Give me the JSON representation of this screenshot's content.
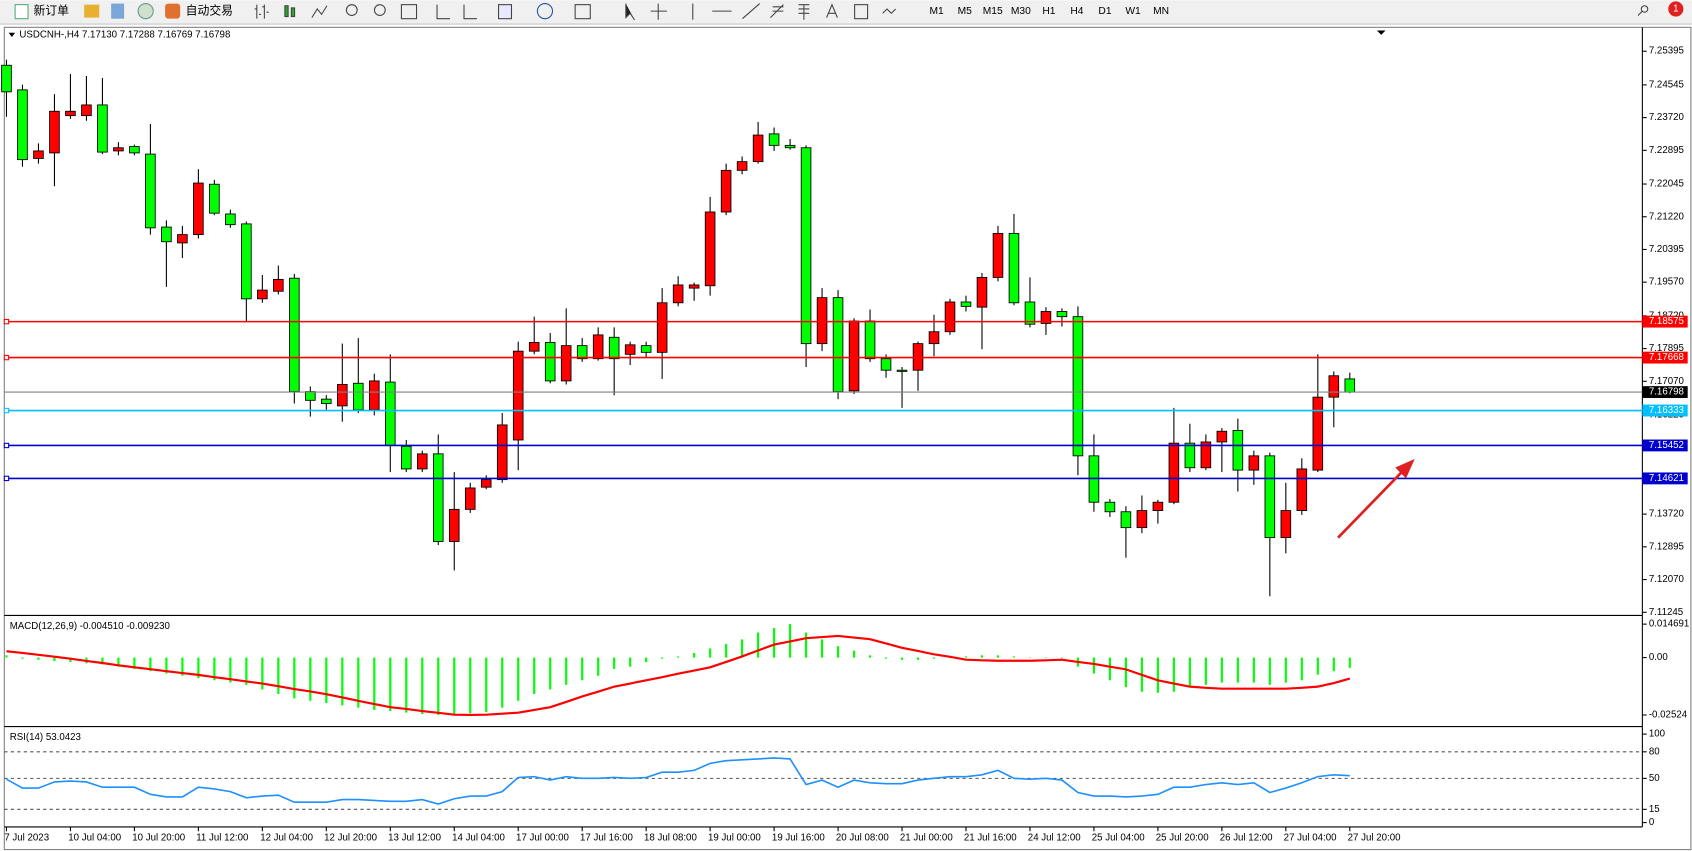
{
  "toolbar": {
    "new_order": "新订单",
    "auto_trading": "自动交易",
    "periods": [
      "M1",
      "M5",
      "M15",
      "M30",
      "H1",
      "H4",
      "D1",
      "W1",
      "MN"
    ],
    "badge": "1"
  },
  "chart_data": [
    {
      "type": "candlestick",
      "title": "USDCNH-,H4 7.17130 7.17288 7.16769 7.16798",
      "categories": [
        "7 Jul 2023",
        null,
        null,
        null,
        "10 Jul 04:00",
        null,
        null,
        null,
        "10 Jul 20:00",
        null,
        null,
        null,
        "11 Jul 12:00",
        null,
        null,
        null,
        "12 Jul 04:00",
        null,
        null,
        null,
        "12 Jul 20:00",
        null,
        null,
        null,
        "13 Jul 12:00",
        null,
        null,
        null,
        "14 Jul 04:00",
        null,
        null,
        null,
        "17 Jul 00:00",
        null,
        null,
        null,
        "17 Jul 16:00",
        null,
        null,
        null,
        "18 Jul 08:00",
        null,
        null,
        null,
        "19 Jul 00:00",
        null,
        null,
        null,
        "19 Jul 16:00",
        null,
        null,
        null,
        "20 Jul 08:00",
        null,
        null,
        null,
        "21 Jul 00:00",
        null,
        null,
        null,
        "21 Jul 16:00",
        null,
        null,
        null,
        "24 Jul 12:00",
        null,
        null,
        null,
        "25 Jul 04:00",
        null,
        null,
        null,
        "25 Jul 20:00",
        null,
        null,
        null,
        "26 Jul 12:00",
        null,
        null,
        null,
        "27 Jul 04:00",
        null,
        null,
        null,
        "27 Jul 20:00"
      ],
      "open": [
        7.2504,
        7.2442,
        7.2269,
        7.2283,
        7.2377,
        7.2377,
        7.2404,
        7.2288,
        7.2299,
        7.228,
        7.2096,
        7.2056,
        7.2077,
        7.2204,
        7.2129,
        7.2104,
        7.1915,
        7.1934,
        7.1967,
        7.1681,
        7.1662,
        7.1645,
        7.1702,
        7.1635,
        7.1705,
        7.1543,
        7.1486,
        7.1524,
        7.1303,
        7.1384,
        7.144,
        7.1459,
        7.1559,
        7.1783,
        7.1805,
        7.1708,
        7.1797,
        7.1764,
        7.1818,
        7.1775,
        7.1797,
        7.178,
        7.1905,
        7.1942,
        7.1948,
        7.2134,
        7.2239,
        7.2261,
        7.2331,
        7.2302,
        7.2296,
        7.1802,
        7.1918,
        7.1683,
        7.1859,
        7.1764,
        7.1735,
        7.1735,
        7.1802,
        7.1832,
        7.1907,
        7.1894,
        7.1969,
        7.208,
        7.1907,
        7.1853,
        7.1883,
        7.187,
        7.1519,
        7.1402,
        7.1378,
        7.1338,
        7.1381,
        7.1402,
        7.1551,
        7.1489,
        7.1554,
        7.1583,
        7.1483,
        7.1519,
        7.1313,
        7.1381,
        7.1483,
        7.1667,
        7.1713
      ],
      "high": [
        7.2518,
        7.2455,
        7.2307,
        7.2431,
        7.2482,
        7.2477,
        7.2472,
        7.231,
        7.2304,
        7.2356,
        7.2113,
        7.2099,
        7.2242,
        7.2215,
        7.214,
        7.211,
        7.1975,
        7.1999,
        7.1978,
        7.1694,
        7.1672,
        7.1802,
        7.1816,
        7.1726,
        7.1775,
        7.1559,
        7.1532,
        7.1573,
        7.1478,
        7.1451,
        7.147,
        7.1627,
        7.1807,
        7.187,
        7.1829,
        7.1891,
        7.1816,
        7.1843,
        7.1843,
        7.1807,
        7.1807,
        7.1942,
        7.1972,
        7.1956,
        7.2172,
        7.2256,
        7.2274,
        7.2361,
        7.2347,
        7.2318,
        7.2302,
        7.1942,
        7.1937,
        7.1866,
        7.1888,
        7.1775,
        7.1743,
        7.1807,
        7.1875,
        7.1915,
        7.1923,
        7.198,
        7.2099,
        7.2129,
        7.1969,
        7.1894,
        7.1891,
        7.1896,
        7.1573,
        7.141,
        7.1392,
        7.1419,
        7.1408,
        7.164,
        7.16,
        7.1573,
        7.1589,
        7.1613,
        7.1532,
        7.1527,
        7.1451,
        7.1513,
        7.1775,
        7.1732,
        7.17288
      ],
      "low": [
        7.2374,
        7.2248,
        7.2256,
        7.2199,
        7.2369,
        7.2364,
        7.228,
        7.2277,
        7.2277,
        7.2077,
        7.1945,
        7.2018,
        7.2067,
        7.2126,
        7.2094,
        7.1856,
        7.1905,
        7.1926,
        7.1651,
        7.1618,
        7.1635,
        7.1605,
        7.1627,
        7.1621,
        7.1478,
        7.1478,
        7.1478,
        7.1294,
        7.123,
        7.1375,
        7.1435,
        7.1451,
        7.1483,
        7.1775,
        7.1702,
        7.1699,
        7.1756,
        7.1759,
        7.1672,
        7.1748,
        7.1767,
        7.1713,
        7.1896,
        7.191,
        7.1923,
        7.2126,
        7.2229,
        7.2256,
        7.2288,
        7.2291,
        7.1743,
        7.1783,
        7.1662,
        7.1675,
        7.1756,
        7.1716,
        7.164,
        7.1683,
        7.177,
        7.1824,
        7.1883,
        7.1788,
        7.1959,
        7.1899,
        7.1843,
        7.1824,
        7.1845,
        7.147,
        7.1378,
        7.1365,
        7.1262,
        7.1324,
        7.1348,
        7.1397,
        7.1478,
        7.1483,
        7.1478,
        7.1429,
        7.1446,
        7.1165,
        7.1273,
        7.137,
        7.1478,
        7.1591,
        7.16769
      ],
      "close": [
        7.2437,
        7.2266,
        7.2288,
        7.2388,
        7.2388,
        7.2404,
        7.2285,
        7.2296,
        7.2283,
        7.2094,
        7.2059,
        7.2077,
        7.2207,
        7.2131,
        7.2102,
        7.1915,
        7.1937,
        7.1964,
        7.1681,
        7.1659,
        7.1651,
        7.1699,
        7.1635,
        7.1708,
        7.1545,
        7.1486,
        7.1524,
        7.1303,
        7.1384,
        7.1438,
        7.1459,
        7.1597,
        7.1783,
        7.1805,
        7.1708,
        7.1797,
        7.1764,
        7.1824,
        7.1764,
        7.1799,
        7.178,
        7.1905,
        7.195,
        7.195,
        7.2134,
        7.2239,
        7.2261,
        7.2328,
        7.2302,
        7.2296,
        7.1802,
        7.1918,
        7.1681,
        7.1859,
        7.1764,
        7.1735,
        7.1732,
        7.1802,
        7.1832,
        7.1907,
        7.1896,
        7.1969,
        7.208,
        7.1905,
        7.1851,
        7.1883,
        7.187,
        7.1519,
        7.1402,
        7.1378,
        7.1338,
        7.1381,
        7.1402,
        7.1551,
        7.1489,
        7.1554,
        7.1581,
        7.1483,
        7.1519,
        7.1313,
        7.1381,
        7.1486,
        7.1667,
        7.1721,
        7.16798
      ],
      "up_color": "#ff0000",
      "down_color": "#00ff00",
      "ylim": [
        7.1122,
        7.2597
      ],
      "yticks": [
        7.25395,
        7.24545,
        {
          "value": 7.2372,
          "label": "7.23720"
        },
        7.22895,
        7.22045,
        {
          "value": 7.2122,
          "label": "7.21220"
        },
        7.20395,
        {
          "value": 7.1957,
          "label": "7.19570"
        },
        {
          "value": 7.1872,
          "label": "7.18720"
        },
        7.17895,
        {
          "value": 7.1707,
          "label": "7.17070"
        },
        {
          "value": 7.1622,
          "label": "7.16220"
        },
        7.15395,
        {
          "value": 7.1457,
          "label": "7.14570"
        },
        {
          "value": 7.1372,
          "label": "7.13720"
        },
        7.12895,
        {
          "value": 7.1207,
          "label": "7.12070"
        },
        7.11245
      ],
      "price_lines": [
        {
          "value": 7.18575,
          "color": "#ff0000"
        },
        {
          "value": 7.17668,
          "color": "#ff0000"
        },
        {
          "value": 7.16333,
          "color": "#00bfff"
        },
        {
          "value": 7.15452,
          "color": "#0000cd"
        },
        {
          "value": 7.14621,
          "color": "#0000cd"
        }
      ],
      "last_price_color": "#000000"
    },
    {
      "type": "macd",
      "title": "MACD(12,26,9) -0.004510 -0.009230",
      "histogram": {
        "color": "#00ff00",
        "values": [
          0.001,
          -0.0005,
          -0.001,
          -0.0015,
          -0.002,
          -0.0025,
          -0.003,
          -0.004,
          -0.005,
          -0.006,
          -0.007,
          -0.008,
          -0.009,
          -0.01,
          -0.011,
          -0.012,
          -0.014,
          -0.016,
          -0.018,
          -0.019,
          -0.02,
          -0.021,
          -0.022,
          -0.023,
          -0.0235,
          -0.0242,
          -0.0248,
          -0.02524,
          -0.025,
          -0.0245,
          -0.024,
          -0.022,
          -0.019,
          -0.016,
          -0.014,
          -0.012,
          -0.01,
          -0.008,
          -0.005,
          -0.004,
          -0.002,
          -0.0005,
          0.0005,
          0.002,
          0.004,
          0.006,
          0.008,
          0.011,
          0.013,
          0.014691,
          0.011,
          0.008,
          0.005,
          0.003,
          0.001,
          -0.0005,
          -0.001,
          -0.001,
          -0.0005,
          0,
          0.0005,
          0.001,
          0.001,
          0.0005,
          0,
          0,
          0,
          -0.004,
          -0.007,
          -0.01,
          -0.013,
          -0.015,
          -0.0155,
          -0.015,
          -0.013,
          -0.012,
          -0.011,
          -0.011,
          -0.011,
          -0.012,
          -0.011,
          -0.01,
          -0.0075,
          -0.006,
          -0.00451
        ]
      },
      "signal": {
        "color": "#ff0000",
        "values": [
          0.0028,
          0.002,
          0.0012,
          0.0004,
          -0.0005,
          -0.0015,
          -0.0024,
          -0.0034,
          -0.0043,
          -0.0051,
          -0.006,
          -0.0068,
          -0.0076,
          -0.0086,
          -0.0095,
          -0.0105,
          -0.0114,
          -0.0126,
          -0.0138,
          -0.0149,
          -0.0161,
          -0.0175,
          -0.019,
          -0.0204,
          -0.0218,
          -0.0226,
          -0.0235,
          -0.0243,
          -0.0251,
          -0.0252,
          -0.0251,
          -0.0247,
          -0.0242,
          -0.023,
          -0.0218,
          -0.0195,
          -0.0171,
          -0.015,
          -0.0128,
          -0.0114,
          -0.01,
          -0.0086,
          -0.0071,
          -0.0057,
          -0.0043,
          -0.0019,
          0.0005,
          0.0031,
          0.0057,
          0.0071,
          0.0085,
          0.009,
          0.0095,
          0.0088,
          0.0081,
          0.0062,
          0.0043,
          0.0029,
          0.0014,
          0.0003,
          -0.0009,
          -0.0012,
          -0.0014,
          -0.0014,
          -0.0014,
          -0.0012,
          -0.0009,
          -0.0019,
          -0.0028,
          -0.004,
          -0.0052,
          -0.0076,
          -0.01,
          -0.0114,
          -0.0128,
          -0.0133,
          -0.0137,
          -0.0137,
          -0.0137,
          -0.0137,
          -0.0137,
          -0.0133,
          -0.0128,
          -0.0112,
          -0.00923
        ]
      },
      "ylim": [
        -0.0289,
        0.0171
      ],
      "yticks": [
        0.014691,
        {
          "value": 0,
          "label": "0.00"
        },
        -0.02524
      ]
    },
    {
      "type": "line",
      "title": "RSI(14) 53.0423",
      "color": "#1e90ff",
      "values": [
        49,
        39,
        39,
        46,
        47,
        46,
        40,
        40,
        40,
        32,
        29,
        29,
        40,
        38,
        35,
        28,
        30,
        31,
        23,
        23,
        23,
        26,
        26,
        25,
        24,
        24,
        26,
        21,
        27,
        30,
        30,
        35,
        51,
        52,
        48,
        52,
        50,
        50,
        51,
        50,
        51,
        57,
        57,
        59,
        67,
        70,
        71,
        72,
        73,
        72,
        43,
        48,
        40,
        48,
        45,
        44,
        44,
        48,
        50,
        52,
        52,
        54,
        59,
        50,
        49,
        50,
        48,
        34,
        30,
        30,
        29,
        30,
        32,
        40,
        40,
        43,
        45,
        43,
        45,
        34,
        39,
        45,
        52,
        54,
        53.0423
      ],
      "ylim": [
        0,
        100
      ],
      "yticks": [
        100,
        80,
        50,
        15,
        0
      ]
    }
  ]
}
